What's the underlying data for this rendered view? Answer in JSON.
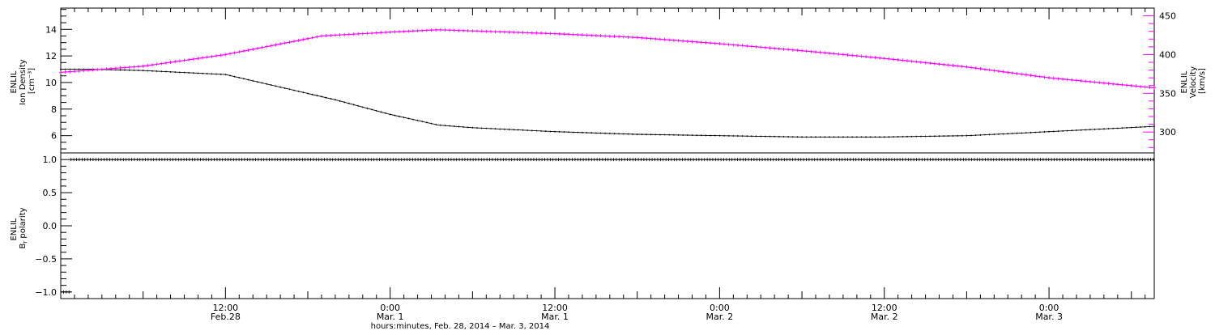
{
  "chart_data": [
    {
      "type": "line",
      "panel": "top",
      "x_unit": "hours since 2014-02-28 00:00 UT",
      "xlim": [
        "2014-02-28 00:00",
        "2014-03-03 07:40"
      ],
      "ylabel_left": [
        "ENLIL",
        "Ion Density",
        "[cm⁻³]"
      ],
      "ylabel_right": [
        "ENLIL",
        "Velocity",
        "[km/s]"
      ],
      "ylim_left": [
        4.7,
        15.6
      ],
      "ylim_right": [
        273,
        460
      ],
      "left_ticks": [
        "6",
        "8",
        "10",
        "12",
        "14"
      ],
      "right_ticks": [
        "300",
        "350",
        "400",
        "450"
      ],
      "series": [
        {
          "axis": "left",
          "color": "#000000",
          "x": [
            "2014-02-28 00:00",
            "2014-02-28 02:00",
            "2014-02-28 06:00",
            "2014-02-28 12:00",
            "2014-02-28 20:00",
            "2014-03-01 00:00",
            "2014-03-01 03:30",
            "2014-03-01 06:00",
            "2014-03-01 12:00",
            "2014-03-01 18:00",
            "2014-03-02 00:00",
            "2014-03-02 06:00",
            "2014-03-02 12:00",
            "2014-03-02 18:00",
            "2014-03-03 00:00",
            "2014-03-03 07:40"
          ],
          "values": [
            11.0,
            11.0,
            10.9,
            10.6,
            8.7,
            7.6,
            6.8,
            6.6,
            6.3,
            6.1,
            6.0,
            5.9,
            5.9,
            6.0,
            6.3,
            6.7
          ]
        },
        {
          "axis": "right",
          "color": "#ff00ff",
          "x": [
            "2014-02-28 00:00",
            "2014-02-28 06:00",
            "2014-02-28 12:00",
            "2014-02-28 19:00",
            "2014-03-01 00:00",
            "2014-03-01 03:30",
            "2014-03-01 12:00",
            "2014-03-01 18:00",
            "2014-03-02 00:00",
            "2014-03-02 06:00",
            "2014-03-02 12:00",
            "2014-03-02 18:00",
            "2014-03-03 00:00",
            "2014-03-03 07:40"
          ],
          "values": [
            377,
            385,
            400,
            424,
            429,
            432,
            427,
            422,
            414,
            405,
            395,
            384,
            370,
            357
          ]
        }
      ]
    },
    {
      "type": "scatter",
      "panel": "bottom",
      "x_unit": "hours since 2014-02-28 00:00 UT",
      "xlim": [
        "2014-02-28 00:00",
        "2014-03-03 07:40"
      ],
      "ylabel": [
        "ENLIL",
        "B",
        "r",
        " polarity"
      ],
      "ylim": [
        -1.1,
        1.1
      ],
      "y_ticks": [
        "−1.0",
        "−0.5",
        "0.0",
        "0.5",
        "1.0"
      ],
      "segments": [
        {
          "x": [
            "2014-02-28 00:00",
            "2014-02-28 00:45"
          ],
          "value": -1.0
        },
        {
          "x": [
            "2014-02-28 00:45",
            "2014-03-03 07:40"
          ],
          "value": 1.0
        }
      ],
      "x_ticks": [
        {
          "x": "2014-02-28 12:00",
          "line1": "12:00",
          "line2": "Feb.28"
        },
        {
          "x": "2014-03-01 00:00",
          "line1": "0:00",
          "line2": "Mar. 1"
        },
        {
          "x": "2014-03-01 12:00",
          "line1": "12:00",
          "line2": "Mar. 1"
        },
        {
          "x": "2014-03-02 00:00",
          "line1": "0:00",
          "line2": "Mar. 2"
        },
        {
          "x": "2014-03-02 12:00",
          "line1": "12:00",
          "line2": "Mar. 2"
        },
        {
          "x": "2014-03-03 00:00",
          "line1": "0:00",
          "line2": "Mar. 3"
        }
      ],
      "xlabel": "hours:minutes, Feb. 28, 2014 – Mar.  3, 2014"
    }
  ]
}
